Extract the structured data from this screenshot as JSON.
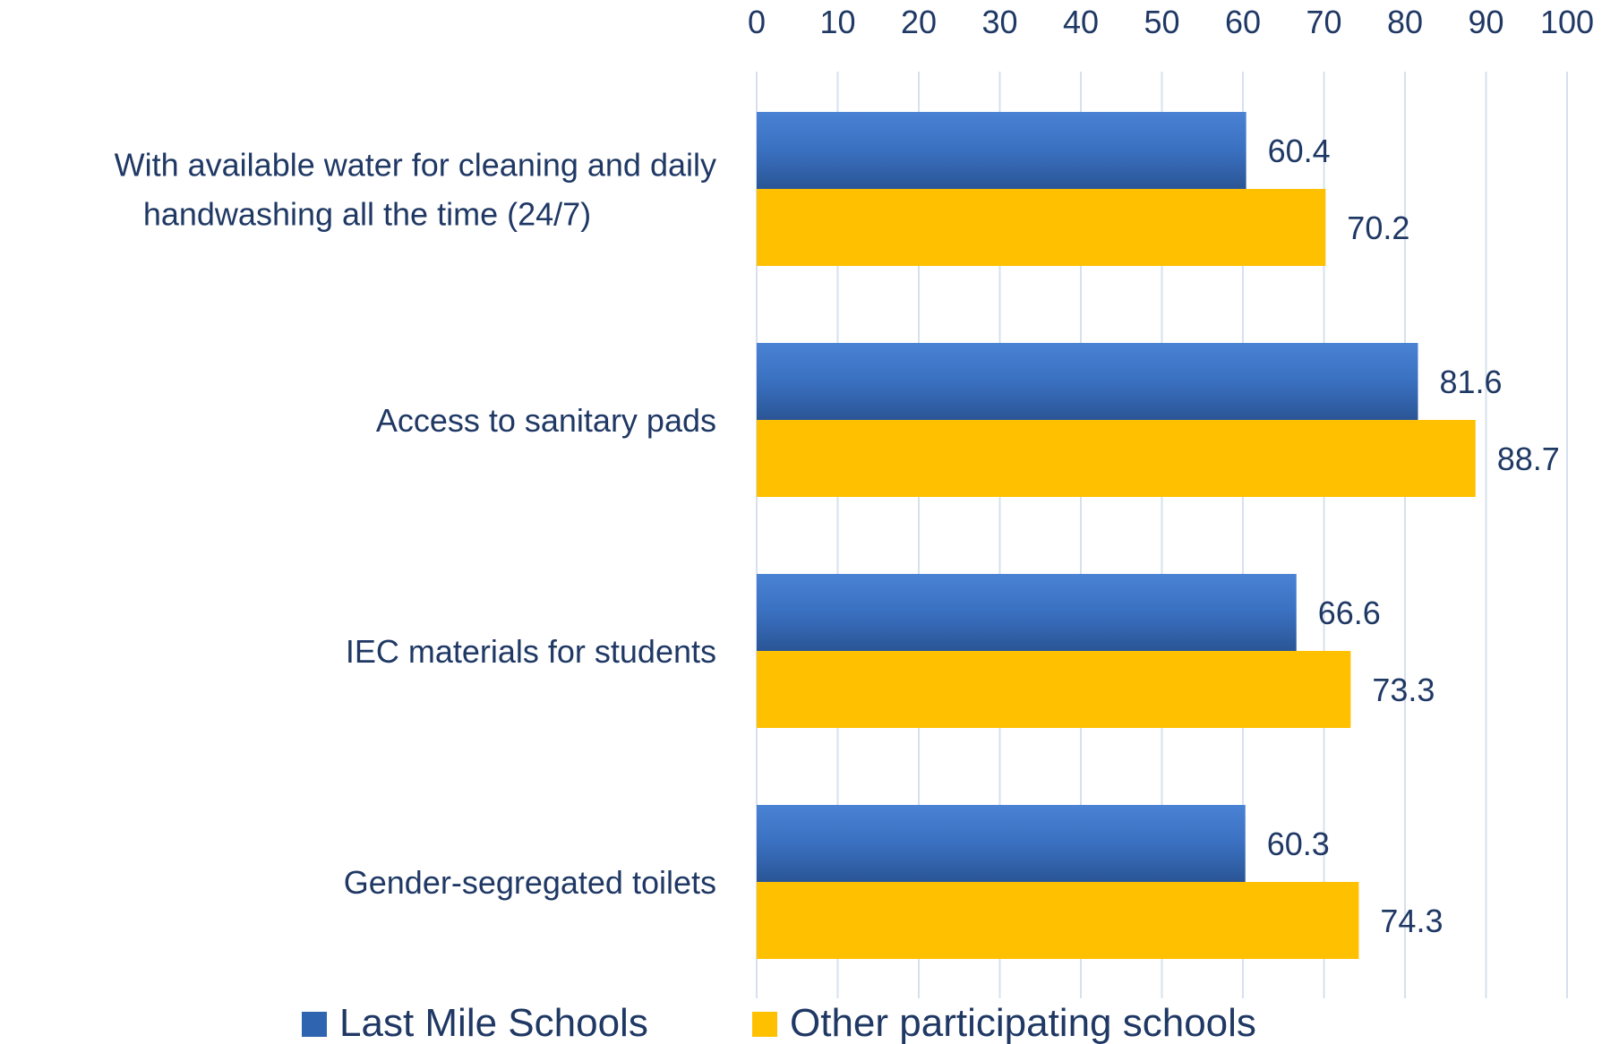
{
  "chart_data": {
    "type": "bar",
    "orientation": "horizontal",
    "categories": [
      [
        "With available water for cleaning and daily",
        "handwashing all the time (24/7)"
      ],
      [
        "Access to sanitary pads"
      ],
      [
        "IEC materials for students"
      ],
      [
        "Gender-segregated toilets"
      ]
    ],
    "series": [
      {
        "name": "Last Mile Schools",
        "values": [
          60.4,
          81.6,
          66.6,
          60.3
        ],
        "color": "#2e64b0"
      },
      {
        "name": "Other participating schools",
        "values": [
          70.2,
          88.7,
          73.3,
          74.3
        ],
        "color": "#ffc000"
      }
    ],
    "xlim": [
      0,
      100
    ],
    "x_ticks": [
      0,
      10,
      20,
      30,
      40,
      50,
      60,
      70,
      80,
      90,
      100
    ],
    "tick_position": "top",
    "grid": true,
    "legend_position": "bottom",
    "title": "",
    "xlabel": "",
    "ylabel": ""
  }
}
